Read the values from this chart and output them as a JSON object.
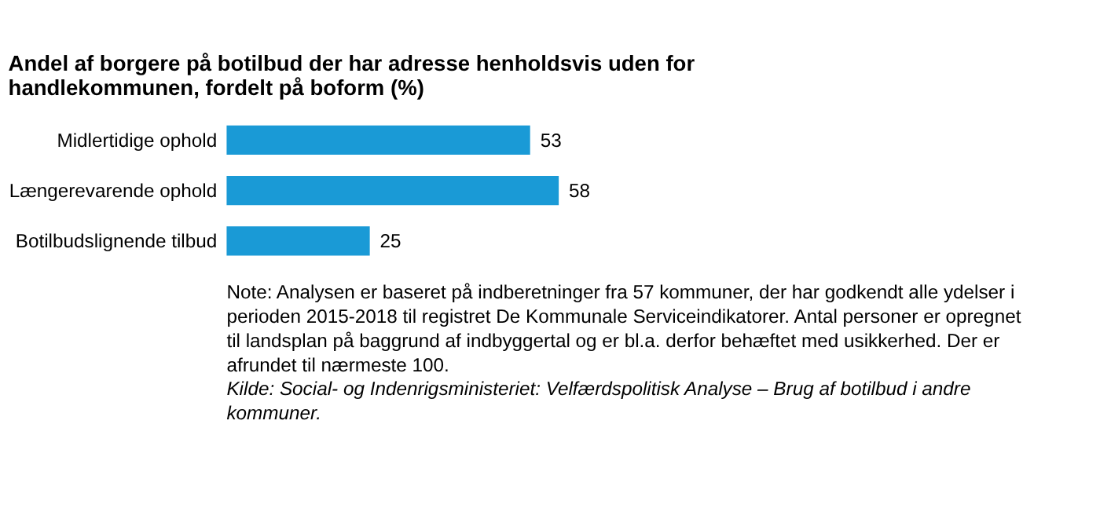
{
  "chart_data": {
    "type": "bar",
    "orientation": "horizontal",
    "title": "Andel af borgere på botilbud der har adresse henholdsvis uden for handlekommunen, fordelt på boform (%)",
    "categories": [
      "Midlertidige ophold",
      "Længerevarende ophold",
      "Botilbudslignende tilbud"
    ],
    "values": [
      53,
      58,
      25
    ],
    "color": "#1a9ad6",
    "data_labels": true,
    "annotations": [
      "Note: Analysen er baseret på indberetninger fra 57 kommuner, der har godkendt alle ydelser i perioden 2015-2018 til registret De Kommunale Serviceindikatorer. Antal personer er opregnet til landsplan på baggrund af indbyggertal og er bl.a. derfor behæftet med usikkerhed. Der er afrundet til nærmeste 100.",
      "Kilde: Social- og Indenrigsministeriet: Velfærdspolitisk Analyse – Brug af botilbud i andre kommuner."
    ]
  }
}
